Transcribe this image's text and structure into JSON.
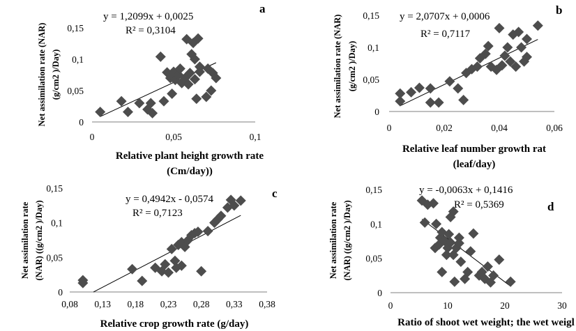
{
  "figure": {
    "background": "#ffffff",
    "marker_color": "#4d4d4d",
    "line_color": "#000000"
  },
  "chart_data": [
    {
      "panel": "a",
      "type": "scatter",
      "xlabel": [
        "Relative plant height growth rate",
        "(Cm/day))"
      ],
      "ylabel": [
        "Net assimilation rate (NAR)",
        "(g/cm2 )/Day)"
      ],
      "equation": "y = 1,2099x + 0,0025",
      "r2": "R² = 0,3104",
      "xlim": [
        0,
        0.1
      ],
      "ylim": [
        0,
        0.15
      ],
      "xticks": [
        0,
        0.05,
        0.1
      ],
      "xtick_labels": [
        "0",
        "0,05",
        "0,1"
      ],
      "yticks": [
        0,
        0.05,
        0.1,
        0.15
      ],
      "ytick_labels": [
        "0",
        "0,05",
        "0,1",
        "0,15"
      ],
      "trendline": {
        "slope": 1.2099,
        "intercept": 0.0025,
        "x_range": [
          0.005,
          0.076
        ]
      },
      "points": [
        [
          0.005,
          0.016
        ],
        [
          0.018,
          0.033
        ],
        [
          0.022,
          0.016
        ],
        [
          0.029,
          0.03
        ],
        [
          0.034,
          0.02
        ],
        [
          0.036,
          0.03
        ],
        [
          0.037,
          0.014
        ],
        [
          0.042,
          0.104
        ],
        [
          0.044,
          0.033
        ],
        [
          0.046,
          0.079
        ],
        [
          0.048,
          0.07
        ],
        [
          0.049,
          0.045
        ],
        [
          0.05,
          0.08
        ],
        [
          0.051,
          0.067
        ],
        [
          0.053,
          0.075
        ],
        [
          0.054,
          0.085
        ],
        [
          0.055,
          0.062
        ],
        [
          0.057,
          0.07
        ],
        [
          0.058,
          0.132
        ],
        [
          0.059,
          0.06
        ],
        [
          0.06,
          0.078
        ],
        [
          0.061,
          0.108
        ],
        [
          0.062,
          0.126
        ],
        [
          0.063,
          0.1
        ],
        [
          0.063,
          0.068
        ],
        [
          0.064,
          0.037
        ],
        [
          0.065,
          0.133
        ],
        [
          0.066,
          0.088
        ],
        [
          0.066,
          0.08
        ],
        [
          0.07,
          0.04
        ],
        [
          0.071,
          0.085
        ],
        [
          0.073,
          0.05
        ],
        [
          0.074,
          0.078
        ],
        [
          0.076,
          0.07
        ]
      ]
    },
    {
      "panel": "b",
      "type": "scatter",
      "xlabel": [
        "Relative leaf number growth rat",
        "(leaf/day)"
      ],
      "ylabel": [
        "Net assimilation rate (NAR)",
        "(g/cm2 )/Day)"
      ],
      "equation": "y = 2,0707x + 0,0006",
      "r2": "R² = 0,7117",
      "xlim": [
        0,
        0.06
      ],
      "ylim": [
        0,
        0.15
      ],
      "xticks": [
        0,
        0.02,
        0.04,
        0.06
      ],
      "xtick_labels": [
        "0",
        "0,02",
        "0,04",
        "0,06"
      ],
      "yticks": [
        0,
        0.05,
        0.1,
        0.15
      ],
      "ytick_labels": [
        "0",
        "0,05",
        "0,1",
        "0,15"
      ],
      "trendline": {
        "slope": 2.0707,
        "intercept": 0.0006,
        "x_range": [
          0.004,
          0.054
        ]
      },
      "points": [
        [
          0.004,
          0.016
        ],
        [
          0.004,
          0.028
        ],
        [
          0.008,
          0.03
        ],
        [
          0.011,
          0.037
        ],
        [
          0.015,
          0.014
        ],
        [
          0.015,
          0.036
        ],
        [
          0.018,
          0.014
        ],
        [
          0.022,
          0.047
        ],
        [
          0.025,
          0.036
        ],
        [
          0.027,
          0.018
        ],
        [
          0.028,
          0.06
        ],
        [
          0.03,
          0.066
        ],
        [
          0.032,
          0.07
        ],
        [
          0.033,
          0.083
        ],
        [
          0.035,
          0.09
        ],
        [
          0.036,
          0.102
        ],
        [
          0.037,
          0.07
        ],
        [
          0.039,
          0.065
        ],
        [
          0.04,
          0.13
        ],
        [
          0.041,
          0.072
        ],
        [
          0.042,
          0.087
        ],
        [
          0.043,
          0.1
        ],
        [
          0.044,
          0.078
        ],
        [
          0.045,
          0.12
        ],
        [
          0.046,
          0.07
        ],
        [
          0.047,
          0.124
        ],
        [
          0.048,
          0.1
        ],
        [
          0.049,
          0.078
        ],
        [
          0.05,
          0.085
        ],
        [
          0.05,
          0.113
        ],
        [
          0.054,
          0.134
        ]
      ]
    },
    {
      "panel": "c",
      "type": "scatter",
      "xlabel": [
        "Relative crop growth rate (g/day)"
      ],
      "ylabel": [
        "Net assimilation rate",
        "(NAR) ((g/cm2 )/Day)"
      ],
      "equation": "y = 0,4942x - 0,0574",
      "r2": "R² = 0,7123",
      "xlim": [
        0.08,
        0.38
      ],
      "ylim": [
        0,
        0.15
      ],
      "xticks": [
        0.08,
        0.13,
        0.18,
        0.23,
        0.28,
        0.33,
        0.38
      ],
      "xtick_labels": [
        "0,08",
        "0,13",
        "0,18",
        "0,23",
        "0,28",
        "0,33",
        "0,38"
      ],
      "yticks": [
        0,
        0.05,
        0.1,
        0.15
      ],
      "ytick_labels": [
        "0",
        "0,05",
        "0,1",
        "0,15"
      ],
      "trendline": {
        "slope": 0.4942,
        "intercept": -0.0574,
        "x_range": [
          0.116,
          0.34
        ]
      },
      "points": [
        [
          0.1,
          0.017
        ],
        [
          0.1,
          0.013
        ],
        [
          0.175,
          0.033
        ],
        [
          0.19,
          0.016
        ],
        [
          0.21,
          0.035
        ],
        [
          0.22,
          0.03
        ],
        [
          0.225,
          0.04
        ],
        [
          0.23,
          0.028
        ],
        [
          0.235,
          0.062
        ],
        [
          0.24,
          0.045
        ],
        [
          0.242,
          0.035
        ],
        [
          0.245,
          0.068
        ],
        [
          0.25,
          0.038
        ],
        [
          0.25,
          0.072
        ],
        [
          0.255,
          0.065
        ],
        [
          0.26,
          0.075
        ],
        [
          0.265,
          0.082
        ],
        [
          0.27,
          0.085
        ],
        [
          0.275,
          0.087
        ],
        [
          0.28,
          0.03
        ],
        [
          0.29,
          0.088
        ],
        [
          0.3,
          0.1
        ],
        [
          0.305,
          0.105
        ],
        [
          0.31,
          0.11
        ],
        [
          0.32,
          0.122
        ],
        [
          0.325,
          0.133
        ],
        [
          0.33,
          0.125
        ],
        [
          0.34,
          0.132
        ]
      ]
    },
    {
      "panel": "d",
      "type": "scatter",
      "xlabel": [
        "Ratio of shoot wet weight; the wet weigl"
      ],
      "ylabel": [
        "Net assimilation rate",
        "(NAR) ((g/cm2 )/Day)"
      ],
      "equation": "y = -0,0063x + 0,1416",
      "r2": "R² = 0,5369",
      "xlim": [
        0,
        30
      ],
      "ylim": [
        0,
        0.15
      ],
      "xticks": [
        0,
        10,
        20,
        30
      ],
      "xtick_labels": [
        "0",
        "10",
        "20",
        "30"
      ],
      "yticks": [
        0,
        0.05,
        0.1,
        0.15
      ],
      "ytick_labels": [
        "0",
        "0,05",
        "0,1",
        "0,15"
      ],
      "trendline": {
        "slope": -0.0063,
        "intercept": 0.1416,
        "x_range": [
          5.5,
          21
        ]
      },
      "points": [
        [
          5.5,
          0.134
        ],
        [
          6,
          0.102
        ],
        [
          6.5,
          0.128
        ],
        [
          7.5,
          0.13
        ],
        [
          7.8,
          0.065
        ],
        [
          8,
          0.1
        ],
        [
          8.5,
          0.07
        ],
        [
          8.7,
          0.08
        ],
        [
          9,
          0.088
        ],
        [
          9,
          0.03
        ],
        [
          9.5,
          0.075
        ],
        [
          9.8,
          0.055
        ],
        [
          10,
          0.065
        ],
        [
          10.2,
          0.085
        ],
        [
          10.5,
          0.073
        ],
        [
          10.5,
          0.11
        ],
        [
          11,
          0.118
        ],
        [
          11,
          0.055
        ],
        [
          11.2,
          0.016
        ],
        [
          11.5,
          0.065
        ],
        [
          12,
          0.08
        ],
        [
          12,
          0.072
        ],
        [
          12.3,
          0.045
        ],
        [
          13,
          0.02
        ],
        [
          13.5,
          0.03
        ],
        [
          14,
          0.06
        ],
        [
          14.5,
          0.086
        ],
        [
          15.5,
          0.025
        ],
        [
          16,
          0.03
        ],
        [
          16.5,
          0.02
        ],
        [
          17,
          0.038
        ],
        [
          17.5,
          0.015
        ],
        [
          18,
          0.025
        ],
        [
          19,
          0.048
        ],
        [
          21,
          0.016
        ]
      ]
    }
  ]
}
